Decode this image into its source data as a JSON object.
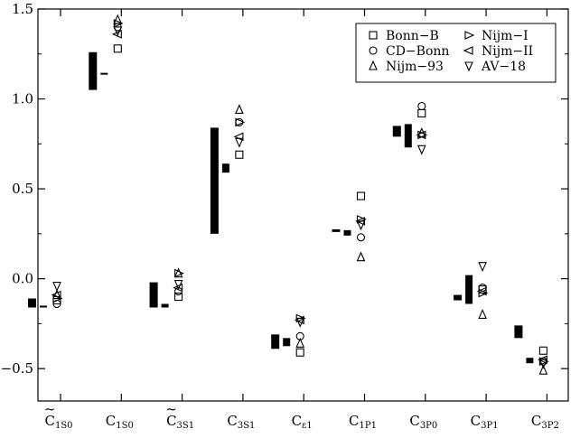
{
  "chart_data": {
    "type": "scatter",
    "title": "",
    "xlabel": "",
    "ylabel": "",
    "ylim": [
      -0.68,
      1.5
    ],
    "yticks": [
      -0.5,
      0.0,
      0.5,
      1.0,
      1.5
    ],
    "ytick_labels": [
      "−0.5",
      "0.0",
      "0.5",
      "1.0",
      "1.5"
    ],
    "grid": false,
    "legend_position": "top-right",
    "categories": [
      {
        "base": "C",
        "sub": "1S0",
        "tilde": true
      },
      {
        "base": "C",
        "sub": "1S0",
        "tilde": false
      },
      {
        "base": "C",
        "sub": "3S1",
        "tilde": true
      },
      {
        "base": "C",
        "sub": "3S1",
        "tilde": false
      },
      {
        "base": "C",
        "sub": "ε1",
        "tilde": false
      },
      {
        "base": "C",
        "sub": "1P1",
        "tilde": false
      },
      {
        "base": "C",
        "sub": "3P0",
        "tilde": false
      },
      {
        "base": "C",
        "sub": "3P1",
        "tilde": false
      },
      {
        "base": "C",
        "sub": "3P2",
        "tilde": false
      }
    ],
    "ranges": [
      [
        {
          "low": -0.16,
          "high": -0.11
        },
        {
          "low": -0.155,
          "high": -0.155
        }
      ],
      [
        {
          "low": 1.05,
          "high": 1.26
        },
        {
          "low": 1.14,
          "high": 1.14
        }
      ],
      [
        {
          "low": -0.16,
          "high": -0.02
        },
        {
          "low": -0.16,
          "high": -0.14
        }
      ],
      [
        {
          "low": 0.25,
          "high": 0.84
        },
        {
          "low": 0.59,
          "high": 0.64
        }
      ],
      [
        {
          "low": -0.39,
          "high": -0.31
        },
        {
          "low": -0.375,
          "high": -0.33
        }
      ],
      [
        {
          "low": 0.26,
          "high": 0.275
        },
        {
          "low": 0.24,
          "high": 0.27
        }
      ],
      [
        {
          "low": 0.79,
          "high": 0.85
        },
        {
          "low": 0.73,
          "high": 0.86
        }
      ],
      [
        {
          "low": -0.12,
          "high": -0.09
        },
        {
          "low": -0.14,
          "high": 0.02
        }
      ],
      [
        {
          "low": -0.33,
          "high": -0.26
        },
        {
          "low": -0.47,
          "high": -0.44
        }
      ]
    ],
    "series": [
      {
        "name": "Bonn−B",
        "marker": "square",
        "values": [
          -0.12,
          1.28,
          -0.1,
          0.69,
          -0.41,
          0.46,
          0.92,
          -0.06,
          -0.4
        ]
      },
      {
        "name": "CD−Bonn",
        "marker": "circle",
        "values": [
          -0.14,
          1.4,
          -0.07,
          0.87,
          -0.32,
          0.23,
          0.96,
          -0.05,
          -0.46
        ]
      },
      {
        "name": "Nijm−93",
        "marker": "triangle-up",
        "values": [
          -0.09,
          1.44,
          0.03,
          0.94,
          -0.36,
          0.12,
          0.81,
          -0.2,
          -0.51
        ]
      },
      {
        "name": "Nijm−I",
        "marker": "triangle-right",
        "values": [
          -0.11,
          1.42,
          0.03,
          0.87,
          -0.22,
          0.33,
          0.8,
          -0.08,
          -0.46
        ]
      },
      {
        "name": "Nijm−II",
        "marker": "triangle-left",
        "values": [
          -0.09,
          1.36,
          -0.05,
          0.79,
          -0.23,
          0.32,
          0.8,
          -0.07,
          -0.45
        ]
      },
      {
        "name": "AV−18",
        "marker": "triangle-down",
        "values": [
          -0.04,
          1.38,
          -0.03,
          0.76,
          -0.24,
          0.3,
          0.72,
          0.07,
          -0.47
        ]
      }
    ]
  }
}
